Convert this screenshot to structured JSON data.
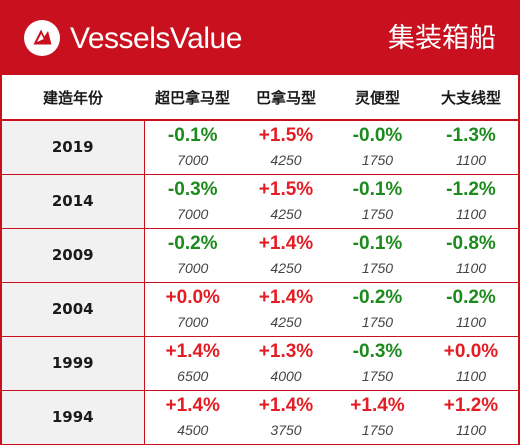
{
  "header": {
    "brand": "VesselsValue",
    "category": "集装箱船",
    "logo_icon": "vesselsvalue-logo-icon"
  },
  "table": {
    "columns": [
      "建造年份",
      "超巴拿马型",
      "巴拿马型",
      "灵便型",
      "大支线型"
    ],
    "rows": [
      {
        "year": "2019",
        "cells": [
          {
            "pct": "-0.1%",
            "value": "7000",
            "dir": "neg"
          },
          {
            "pct": "+1.5%",
            "value": "4250",
            "dir": "pos"
          },
          {
            "pct": "-0.0%",
            "value": "1750",
            "dir": "neg"
          },
          {
            "pct": "-1.3%",
            "value": "1100",
            "dir": "neg"
          }
        ]
      },
      {
        "year": "2014",
        "cells": [
          {
            "pct": "-0.3%",
            "value": "7000",
            "dir": "neg"
          },
          {
            "pct": "+1.5%",
            "value": "4250",
            "dir": "pos"
          },
          {
            "pct": "-0.1%",
            "value": "1750",
            "dir": "neg"
          },
          {
            "pct": "-1.2%",
            "value": "1100",
            "dir": "neg"
          }
        ]
      },
      {
        "year": "2009",
        "cells": [
          {
            "pct": "-0.2%",
            "value": "7000",
            "dir": "neg"
          },
          {
            "pct": "+1.4%",
            "value": "4250",
            "dir": "pos"
          },
          {
            "pct": "-0.1%",
            "value": "1750",
            "dir": "neg"
          },
          {
            "pct": "-0.8%",
            "value": "1100",
            "dir": "neg"
          }
        ]
      },
      {
        "year": "2004",
        "cells": [
          {
            "pct": "+0.0%",
            "value": "7000",
            "dir": "pos"
          },
          {
            "pct": "+1.4%",
            "value": "4250",
            "dir": "pos"
          },
          {
            "pct": "-0.2%",
            "value": "1750",
            "dir": "neg"
          },
          {
            "pct": "-0.2%",
            "value": "1100",
            "dir": "neg"
          }
        ]
      },
      {
        "year": "1999",
        "cells": [
          {
            "pct": "+1.4%",
            "value": "6500",
            "dir": "pos"
          },
          {
            "pct": "+1.3%",
            "value": "4000",
            "dir": "pos"
          },
          {
            "pct": "-0.3%",
            "value": "1750",
            "dir": "neg"
          },
          {
            "pct": "+0.0%",
            "value": "1100",
            "dir": "pos"
          }
        ]
      },
      {
        "year": "1994",
        "cells": [
          {
            "pct": "+1.4%",
            "value": "4500",
            "dir": "pos"
          },
          {
            "pct": "+1.4%",
            "value": "3750",
            "dir": "pos"
          },
          {
            "pct": "+1.4%",
            "value": "1750",
            "dir": "pos"
          },
          {
            "pct": "+1.2%",
            "value": "1100",
            "dir": "pos"
          }
        ]
      }
    ]
  },
  "colors": {
    "brand_red": "#c8101e",
    "positive": "#e41c23",
    "negative": "#1d8a1d",
    "year_bg": "#f1f1f1"
  }
}
